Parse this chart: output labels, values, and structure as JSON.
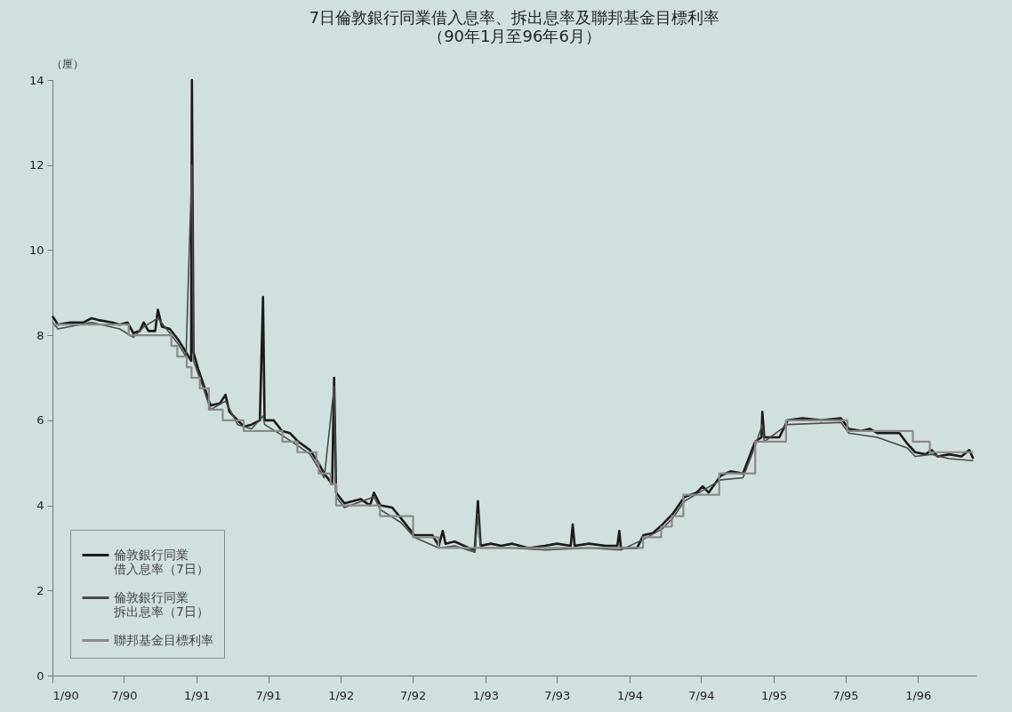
{
  "chart_data": {
    "type": "line",
    "title": "7日倫敦銀行同業借入息率、拆出息率及聯邦基金目標利率",
    "subtitle": "（90年1月至96年6月）",
    "ylabel": "（厘）",
    "xlim": [
      "1990-01-01",
      "1996-05-28"
    ],
    "xticks": [
      {
        "value": "1990-01-01",
        "label": "1/90"
      },
      {
        "value": "1990-07-01",
        "label": "7/90"
      },
      {
        "value": "1991-01-01",
        "label": "1/91"
      },
      {
        "value": "1991-07-01",
        "label": "7/91"
      },
      {
        "value": "1992-01-01",
        "label": "1/92"
      },
      {
        "value": "1992-07-01",
        "label": "7/92"
      },
      {
        "value": "1993-01-01",
        "label": "1/93"
      },
      {
        "value": "1993-07-01",
        "label": "7/93"
      },
      {
        "value": "1994-01-01",
        "label": "1/94"
      },
      {
        "value": "1994-07-01",
        "label": "7/94"
      },
      {
        "value": "1995-01-01",
        "label": "1/95"
      },
      {
        "value": "1995-07-01",
        "label": "7/95"
      },
      {
        "value": "1996-01-01",
        "label": "1/96"
      }
    ],
    "ylim": [
      0,
      14
    ],
    "yticks": [
      0,
      2,
      4,
      6,
      8,
      10,
      12,
      14
    ],
    "grid": false,
    "legend": "bottom left",
    "line_style": "solid",
    "marker": "none",
    "series": [
      {
        "name": "倫敦銀行同業借入息率（7日）",
        "color": "#1a1a1a",
        "x": [
          "1990-01-01",
          "1990-01-15",
          "1990-02-15",
          "1990-03-20",
          "1990-04-10",
          "1990-05-01",
          "1990-06-01",
          "1990-06-20",
          "1990-07-10",
          "1990-07-25",
          "1990-08-10",
          "1990-08-20",
          "1990-09-01",
          "1990-09-18",
          "1990-09-25",
          "1990-10-05",
          "1990-10-25",
          "1990-11-15",
          "1990-12-05",
          "1990-12-18",
          "1990-12-20",
          "1990-12-24",
          "1991-01-05",
          "1991-01-20",
          "1991-02-05",
          "1991-03-01",
          "1991-03-15",
          "1991-03-25",
          "1991-04-15",
          "1991-05-01",
          "1991-05-20",
          "1991-06-10",
          "1991-06-18",
          "1991-06-22",
          "1991-07-15",
          "1991-08-05",
          "1991-08-25",
          "1991-09-15",
          "1991-10-15",
          "1991-11-05",
          "1991-11-20",
          "1991-12-10",
          "1991-12-15",
          "1991-12-20",
          "1992-01-10",
          "1992-02-01",
          "1992-02-20",
          "1992-03-15",
          "1992-03-25",
          "1992-04-10",
          "1992-05-10",
          "1992-06-01",
          "1992-07-05",
          "1992-08-20",
          "1992-09-05",
          "1992-09-15",
          "1992-09-22",
          "1992-10-15",
          "1992-11-20",
          "1992-12-05",
          "1992-12-13",
          "1992-12-20",
          "1993-01-15",
          "1993-02-10",
          "1993-03-10",
          "1993-04-20",
          "1993-06-01",
          "1993-07-01",
          "1993-08-05",
          "1993-08-10",
          "1993-08-15",
          "1993-09-20",
          "1993-11-01",
          "1993-12-01",
          "1993-12-06",
          "1993-12-10",
          "1994-01-20",
          "1994-02-05",
          "1994-03-01",
          "1994-03-25",
          "1994-04-20",
          "1994-05-20",
          "1994-06-20",
          "1994-07-05",
          "1994-07-20",
          "1994-08-20",
          "1994-09-15",
          "1994-10-15",
          "1994-11-15",
          "1994-12-01",
          "1994-12-03",
          "1994-12-08",
          "1995-01-15",
          "1995-02-05",
          "1995-03-15",
          "1995-05-01",
          "1995-06-20",
          "1995-07-10",
          "1995-08-10",
          "1995-09-01",
          "1995-09-20",
          "1995-11-15",
          "1995-12-05",
          "1995-12-25",
          "1996-01-20",
          "1996-02-05",
          "1996-02-20",
          "1996-03-20",
          "1996-04-20",
          "1996-05-10",
          "1996-05-20"
        ],
        "values": [
          8.45,
          8.25,
          8.3,
          8.3,
          8.4,
          8.35,
          8.3,
          8.25,
          8.3,
          8.05,
          8.1,
          8.3,
          8.1,
          8.1,
          8.6,
          8.2,
          8.15,
          7.9,
          7.6,
          7.4,
          14.0,
          7.6,
          7.2,
          6.8,
          6.35,
          6.4,
          6.6,
          6.2,
          6.0,
          5.85,
          5.9,
          6.0,
          8.9,
          6.0,
          6.0,
          5.75,
          5.7,
          5.5,
          5.3,
          5.0,
          4.75,
          4.5,
          7.0,
          4.3,
          4.05,
          4.1,
          4.15,
          4.0,
          4.3,
          4.0,
          3.95,
          3.7,
          3.3,
          3.3,
          3.05,
          3.4,
          3.1,
          3.15,
          3.0,
          2.95,
          4.1,
          3.05,
          3.1,
          3.05,
          3.1,
          3.0,
          3.05,
          3.1,
          3.05,
          3.55,
          3.05,
          3.1,
          3.05,
          3.05,
          3.4,
          3.0,
          3.0,
          3.3,
          3.35,
          3.55,
          3.8,
          4.2,
          4.3,
          4.45,
          4.3,
          4.7,
          4.8,
          4.75,
          5.5,
          5.6,
          6.2,
          5.6,
          5.6,
          6.0,
          6.05,
          6.0,
          6.05,
          5.8,
          5.75,
          5.8,
          5.7,
          5.7,
          5.45,
          5.25,
          5.2,
          5.3,
          5.15,
          5.2,
          5.15,
          5.3,
          5.1
        ]
      },
      {
        "name": "倫敦銀行同業拆出息率（7日）",
        "color": "#4a4a4a",
        "x": [
          "1990-01-01",
          "1990-01-15",
          "1990-04-10",
          "1990-06-20",
          "1990-07-25",
          "1990-08-20",
          "1990-09-25",
          "1990-10-25",
          "1990-11-15",
          "1990-12-05",
          "1990-12-20",
          "1990-12-24",
          "1991-01-20",
          "1991-02-05",
          "1991-03-15",
          "1991-04-15",
          "1991-05-20",
          "1991-06-18",
          "1991-06-22",
          "1991-08-05",
          "1991-09-15",
          "1991-10-15",
          "1991-11-20",
          "1991-12-15",
          "1991-12-20",
          "1992-01-10",
          "1992-03-25",
          "1992-04-10",
          "1992-06-01",
          "1992-07-05",
          "1992-09-05",
          "1992-10-15",
          "1992-12-05",
          "1992-12-13",
          "1992-12-20",
          "1993-03-10",
          "1993-06-01",
          "1993-09-20",
          "1993-12-10",
          "1994-02-05",
          "1994-03-25",
          "1994-04-20",
          "1994-05-20",
          "1994-07-05",
          "1994-08-20",
          "1994-10-15",
          "1994-11-15",
          "1994-12-03",
          "1994-12-08",
          "1995-02-05",
          "1995-06-20",
          "1995-07-10",
          "1995-09-20",
          "1995-12-05",
          "1995-12-25",
          "1996-02-05",
          "1996-03-20",
          "1996-05-20"
        ],
        "values": [
          8.3,
          8.15,
          8.3,
          8.15,
          7.95,
          8.2,
          8.4,
          8.05,
          7.8,
          7.5,
          12.0,
          7.4,
          6.7,
          6.25,
          6.45,
          5.9,
          5.8,
          6.1,
          5.9,
          5.65,
          5.4,
          5.2,
          4.65,
          6.8,
          4.2,
          3.95,
          4.2,
          3.9,
          3.6,
          3.25,
          3.0,
          3.05,
          2.9,
          3.8,
          3.0,
          3.0,
          2.95,
          3.0,
          2.95,
          3.2,
          3.45,
          3.7,
          4.1,
          4.35,
          4.6,
          4.65,
          5.4,
          5.9,
          5.5,
          5.9,
          5.95,
          5.7,
          5.6,
          5.35,
          5.15,
          5.2,
          5.1,
          5.05
        ]
      },
      {
        "name": "聯邦基金目標利率",
        "color": "#8a8a8a",
        "type": "step",
        "x": [
          "1990-01-01",
          "1990-07-13",
          "1990-10-29",
          "1990-11-13",
          "1990-12-07",
          "1990-12-19",
          "1991-01-09",
          "1991-02-01",
          "1991-03-08",
          "1991-04-30",
          "1991-08-06",
          "1991-09-13",
          "1991-10-31",
          "1991-11-06",
          "1991-12-06",
          "1991-12-20",
          "1992-04-09",
          "1992-07-02",
          "1992-09-04",
          "1994-02-04",
          "1994-03-22",
          "1994-04-18",
          "1994-05-17",
          "1994-08-16",
          "1994-11-15",
          "1995-02-01",
          "1995-07-06",
          "1995-12-19",
          "1996-01-31",
          "1996-05-20"
        ],
        "values": [
          8.25,
          8.0,
          7.75,
          7.5,
          7.25,
          7.0,
          6.75,
          6.25,
          6.0,
          5.75,
          5.5,
          5.25,
          5.0,
          4.75,
          4.5,
          4.0,
          3.75,
          3.25,
          3.0,
          3.25,
          3.5,
          3.75,
          4.25,
          4.75,
          5.5,
          6.0,
          5.75,
          5.5,
          5.25,
          5.25
        ]
      }
    ]
  }
}
